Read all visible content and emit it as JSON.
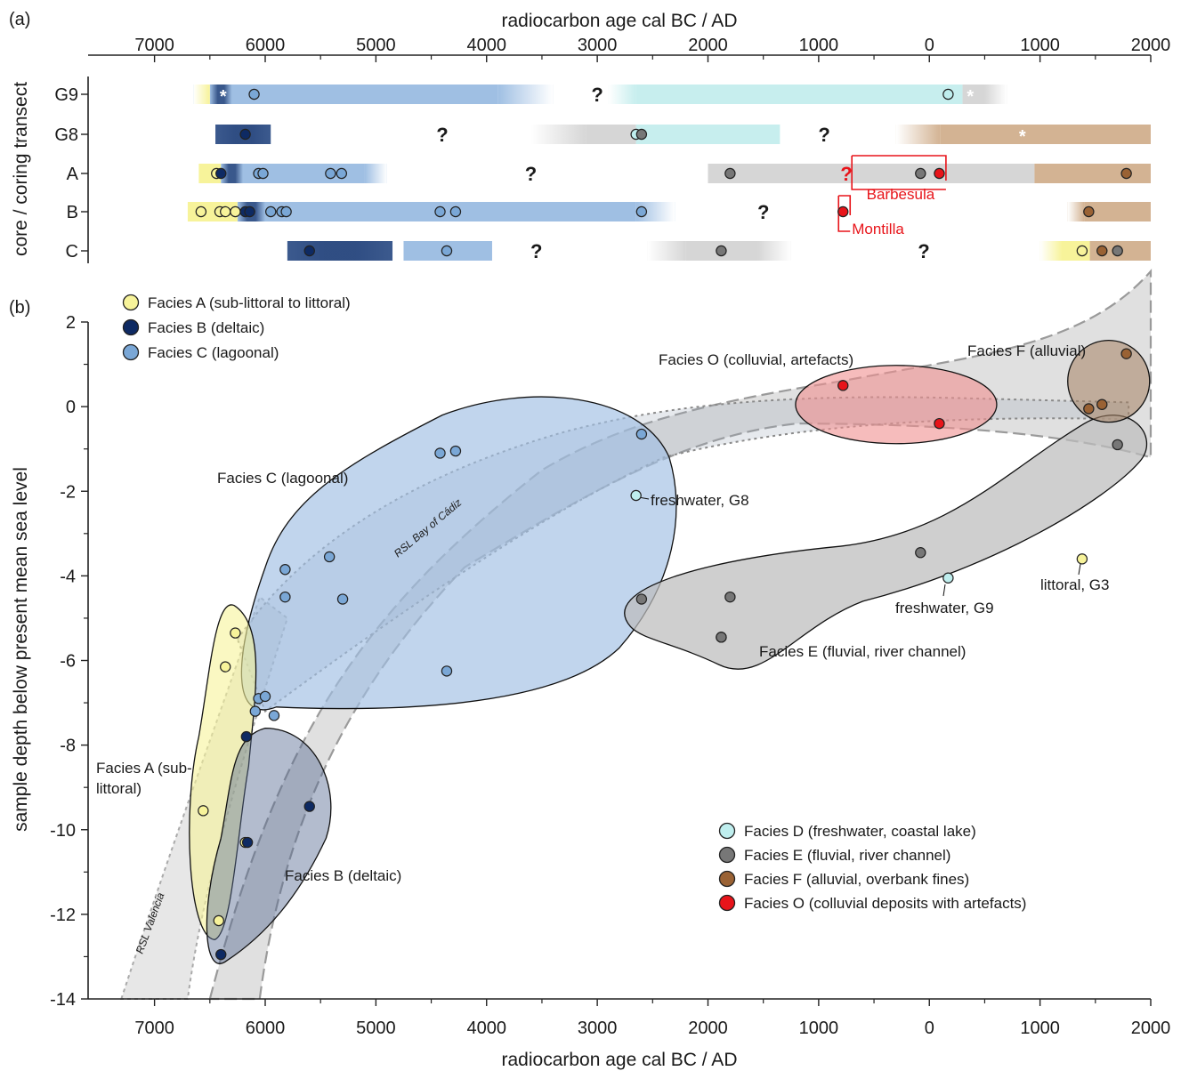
{
  "panel_a_label": "(a)",
  "panel_b_label": "(b)",
  "top_axis_label": "radiocarbon age cal BC / AD",
  "bottom_axis_label": "radiocarbon age cal BC / AD",
  "panel_a_ylabel": "core / coring transect",
  "panel_b_ylabel": "sample depth below present mean sea level",
  "colors": {
    "facies_A": "#f7f39a",
    "facies_B": "#0e2a63",
    "facies_C": "#7aa7d6",
    "facies_D": "#bfeeee",
    "facies_E": "#777777",
    "facies_F": "#9a6234",
    "facies_O": "#e8141a",
    "site_label": "#e8141a"
  },
  "legend_top": [
    {
      "key": "A",
      "label": "Facies A (sub-littoral to littoral)"
    },
    {
      "key": "B",
      "label": "Facies B (deltaic)"
    },
    {
      "key": "C",
      "label": "Facies C (lagoonal)"
    }
  ],
  "legend_bottom": [
    {
      "key": "D",
      "label": "Facies D (freshwater, coastal lake)"
    },
    {
      "key": "E",
      "label": "Facies E (fluvial, river channel)"
    },
    {
      "key": "F",
      "label": "Facies F (alluvial, overbank fines)"
    },
    {
      "key": "O",
      "label": "Facies O (colluvial deposits with artefacts)"
    }
  ],
  "region_labels": {
    "facies_C": "Facies C (lagoonal)",
    "facies_A_line1": "Facies A (sub-",
    "facies_A_line2": "littoral)",
    "facies_B": "Facies B (deltaic)",
    "facies_E": "Facies E (fluvial, river channel)",
    "facies_O": "Facies O (colluvial, artefacts)",
    "facies_F": "Facies F (alluvial)",
    "freshwater_g8": "freshwater, G8",
    "freshwater_g9": "freshwater, G9",
    "littoral_g3": "littoral, G3",
    "rsl_cadiz": "RSL Bay of Cádiz",
    "rsl_valencia": "RSL Valencia"
  },
  "site_labels": {
    "barbesula": "Barbesula",
    "montilla": "Montilla"
  },
  "question_mark": "?",
  "asterisk": "*",
  "chart_data": [
    {
      "type": "timeline",
      "panel": "a",
      "x_axis": {
        "label": "radiocarbon age cal BC / AD",
        "range": [
          7600,
          -2000
        ],
        "note": "values are years BC; negative = AD",
        "ticks": [
          7000,
          6000,
          5000,
          4000,
          3000,
          2000,
          1000,
          0,
          -1000,
          -2000
        ],
        "tick_labels": [
          "7000",
          "6000",
          "5000",
          "4000",
          "3000",
          "2000",
          "1000",
          "0",
          "1000",
          "2000"
        ]
      },
      "rows": [
        "G9",
        "G8",
        "A",
        "B",
        "C"
      ],
      "bars": [
        {
          "row": "G9",
          "facies": "C",
          "from": 6650,
          "to": 3400
        },
        {
          "row": "G9",
          "facies": "D",
          "from": 2900,
          "to": -300
        },
        {
          "row": "G9",
          "facies": "E",
          "from": -300,
          "to": -700
        },
        {
          "row": "G8",
          "facies": "B",
          "from": 6450,
          "to": 5950
        },
        {
          "row": "G8",
          "facies": "E",
          "from": 3600,
          "to": 2650
        },
        {
          "row": "G8",
          "facies": "D",
          "from": 2650,
          "to": 1350
        },
        {
          "row": "G8",
          "facies": "F",
          "from": 300,
          "to": -2000
        },
        {
          "row": "A",
          "facies": "A",
          "from": 6600,
          "to": 6400
        },
        {
          "row": "A",
          "facies": "C",
          "from": 6400,
          "to": 4900
        },
        {
          "row": "A",
          "facies": "E",
          "from": 2000,
          "to": -950
        },
        {
          "row": "A",
          "facies": "F",
          "from": -950,
          "to": -2000
        },
        {
          "row": "B",
          "facies": "A",
          "from": 6700,
          "to": 6250
        },
        {
          "row": "B",
          "facies": "C",
          "from": 6250,
          "to": 2300
        },
        {
          "row": "B",
          "facies": "F",
          "from": -1250,
          "to": -2000
        },
        {
          "row": "C",
          "facies": "B",
          "from": 5800,
          "to": 4850
        },
        {
          "row": "C",
          "facies": "C",
          "from": 4750,
          "to": 3950
        },
        {
          "row": "C",
          "facies": "E",
          "from": 2550,
          "to": 1250
        },
        {
          "row": "C",
          "facies": "A",
          "from": -1000,
          "to": -1450
        },
        {
          "row": "C",
          "facies": "F",
          "from": -1450,
          "to": -2000
        }
      ],
      "points": [
        {
          "row": "G9",
          "x": 6100,
          "facies": "C"
        },
        {
          "row": "G9",
          "x": -170,
          "facies": "D"
        },
        {
          "row": "G8",
          "x": 6180,
          "facies": "B"
        },
        {
          "row": "G8",
          "x": 2650,
          "facies": "D"
        },
        {
          "row": "G8",
          "x": 2600,
          "facies": "E"
        },
        {
          "row": "A",
          "x": 6440,
          "facies": "A"
        },
        {
          "row": "A",
          "x": 6400,
          "facies": "B"
        },
        {
          "row": "A",
          "x": 6060,
          "facies": "C"
        },
        {
          "row": "A",
          "x": 6020,
          "facies": "C"
        },
        {
          "row": "A",
          "x": 5410,
          "facies": "C"
        },
        {
          "row": "A",
          "x": 5310,
          "facies": "C"
        },
        {
          "row": "A",
          "x": 1800,
          "facies": "E"
        },
        {
          "row": "A",
          "x": 80,
          "facies": "E"
        },
        {
          "row": "A",
          "x": -90,
          "facies": "O"
        },
        {
          "row": "A",
          "x": -1780,
          "facies": "F"
        },
        {
          "row": "B",
          "x": 6580,
          "facies": "A"
        },
        {
          "row": "B",
          "x": 6410,
          "facies": "A"
        },
        {
          "row": "B",
          "x": 6360,
          "facies": "A"
        },
        {
          "row": "B",
          "x": 6270,
          "facies": "A"
        },
        {
          "row": "B",
          "x": 6180,
          "facies": "B"
        },
        {
          "row": "B",
          "x": 6140,
          "facies": "B"
        },
        {
          "row": "B",
          "x": 5950,
          "facies": "C"
        },
        {
          "row": "B",
          "x": 5850,
          "facies": "C"
        },
        {
          "row": "B",
          "x": 5810,
          "facies": "C"
        },
        {
          "row": "B",
          "x": 4420,
          "facies": "C"
        },
        {
          "row": "B",
          "x": 4280,
          "facies": "C"
        },
        {
          "row": "B",
          "x": 2600,
          "facies": "C"
        },
        {
          "row": "B",
          "x": 780,
          "facies": "O"
        },
        {
          "row": "B",
          "x": -1440,
          "facies": "F"
        },
        {
          "row": "C",
          "x": 5600,
          "facies": "B"
        },
        {
          "row": "C",
          "x": 4360,
          "facies": "C"
        },
        {
          "row": "C",
          "x": 1880,
          "facies": "E"
        },
        {
          "row": "C",
          "x": -1380,
          "facies": "A"
        },
        {
          "row": "C",
          "x": -1560,
          "facies": "F"
        },
        {
          "row": "C",
          "x": -1700,
          "facies": "E"
        }
      ],
      "question_marks": [
        {
          "row": "G9",
          "x": 3000
        },
        {
          "row": "G8",
          "x": 4400
        },
        {
          "row": "G8",
          "x": 950
        },
        {
          "row": "A",
          "x": 3600
        },
        {
          "row": "A",
          "x": 750
        },
        {
          "row": "B",
          "x": 1500
        },
        {
          "row": "C",
          "x": 3550
        },
        {
          "row": "C",
          "x": 50
        }
      ],
      "site_labels": [
        {
          "text": "Barbesula",
          "row": "A",
          "from": 700,
          "to": -150
        },
        {
          "text": "Montilla",
          "row": "B",
          "x": 780
        }
      ]
    },
    {
      "type": "scatter",
      "panel": "b",
      "x_axis": {
        "label": "radiocarbon age cal BC / AD",
        "range": [
          7600,
          -2000
        ],
        "ticks": [
          7000,
          6000,
          5000,
          4000,
          3000,
          2000,
          1000,
          0,
          -1000,
          -2000
        ],
        "tick_labels": [
          "7000",
          "6000",
          "5000",
          "4000",
          "3000",
          "2000",
          "1000",
          "0",
          "1000",
          "2000"
        ]
      },
      "y_axis": {
        "label": "sample depth below present mean sea level",
        "range": [
          -14,
          2
        ],
        "ticks": [
          2,
          0,
          -2,
          -4,
          -6,
          -8,
          -10,
          -12,
          -14
        ],
        "tick_labels": [
          "2",
          "0",
          "-2",
          "-4",
          "-6",
          "-8",
          "-10",
          "-12",
          "-14"
        ]
      },
      "series": [
        {
          "facies": "A",
          "name": "Facies A (sub-littoral to littoral)",
          "points": [
            [
              6270,
              -5.35
            ],
            [
              6360,
              -6.15
            ],
            [
              6560,
              -9.55
            ],
            [
              6180,
              -10.3
            ],
            [
              6420,
              -12.15
            ],
            [
              -1380,
              -3.6
            ]
          ]
        },
        {
          "facies": "B",
          "name": "Facies B (deltaic)",
          "points": [
            [
              6170,
              -7.8
            ],
            [
              5600,
              -9.45
            ],
            [
              6160,
              -10.3
            ],
            [
              6400,
              -12.95
            ]
          ]
        },
        {
          "facies": "C",
          "name": "Facies C (lagoonal)",
          "points": [
            [
              4420,
              -1.1
            ],
            [
              4280,
              -1.05
            ],
            [
              2600,
              -0.65
            ],
            [
              5820,
              -3.85
            ],
            [
              5420,
              -3.55
            ],
            [
              5300,
              -4.55
            ],
            [
              5820,
              -4.5
            ],
            [
              6060,
              -6.9
            ],
            [
              6000,
              -6.85
            ],
            [
              6090,
              -7.2
            ],
            [
              5920,
              -7.3
            ],
            [
              4360,
              -6.25
            ],
            [
              1880,
              -5.45
            ]
          ]
        },
        {
          "facies": "D",
          "name": "Facies D (freshwater, coastal lake)",
          "points": [
            [
              2650,
              -2.1
            ],
            [
              -170,
              -4.05
            ]
          ]
        },
        {
          "facies": "E",
          "name": "Facies E (fluvial, river channel)",
          "points": [
            [
              2600,
              -4.55
            ],
            [
              1800,
              -4.5
            ],
            [
              1880,
              -5.45
            ],
            [
              80,
              -3.45
            ],
            [
              -1700,
              -0.9
            ]
          ]
        },
        {
          "facies": "F",
          "name": "Facies F (alluvial, overbank fines)",
          "points": [
            [
              -1780,
              1.25
            ],
            [
              -1560,
              0.05
            ],
            [
              -1440,
              -0.05
            ]
          ]
        },
        {
          "facies": "O",
          "name": "Facies O (colluvial deposits with artefacts)",
          "points": [
            [
              780,
              0.5
            ],
            [
              -90,
              -0.4
            ]
          ]
        }
      ]
    }
  ]
}
